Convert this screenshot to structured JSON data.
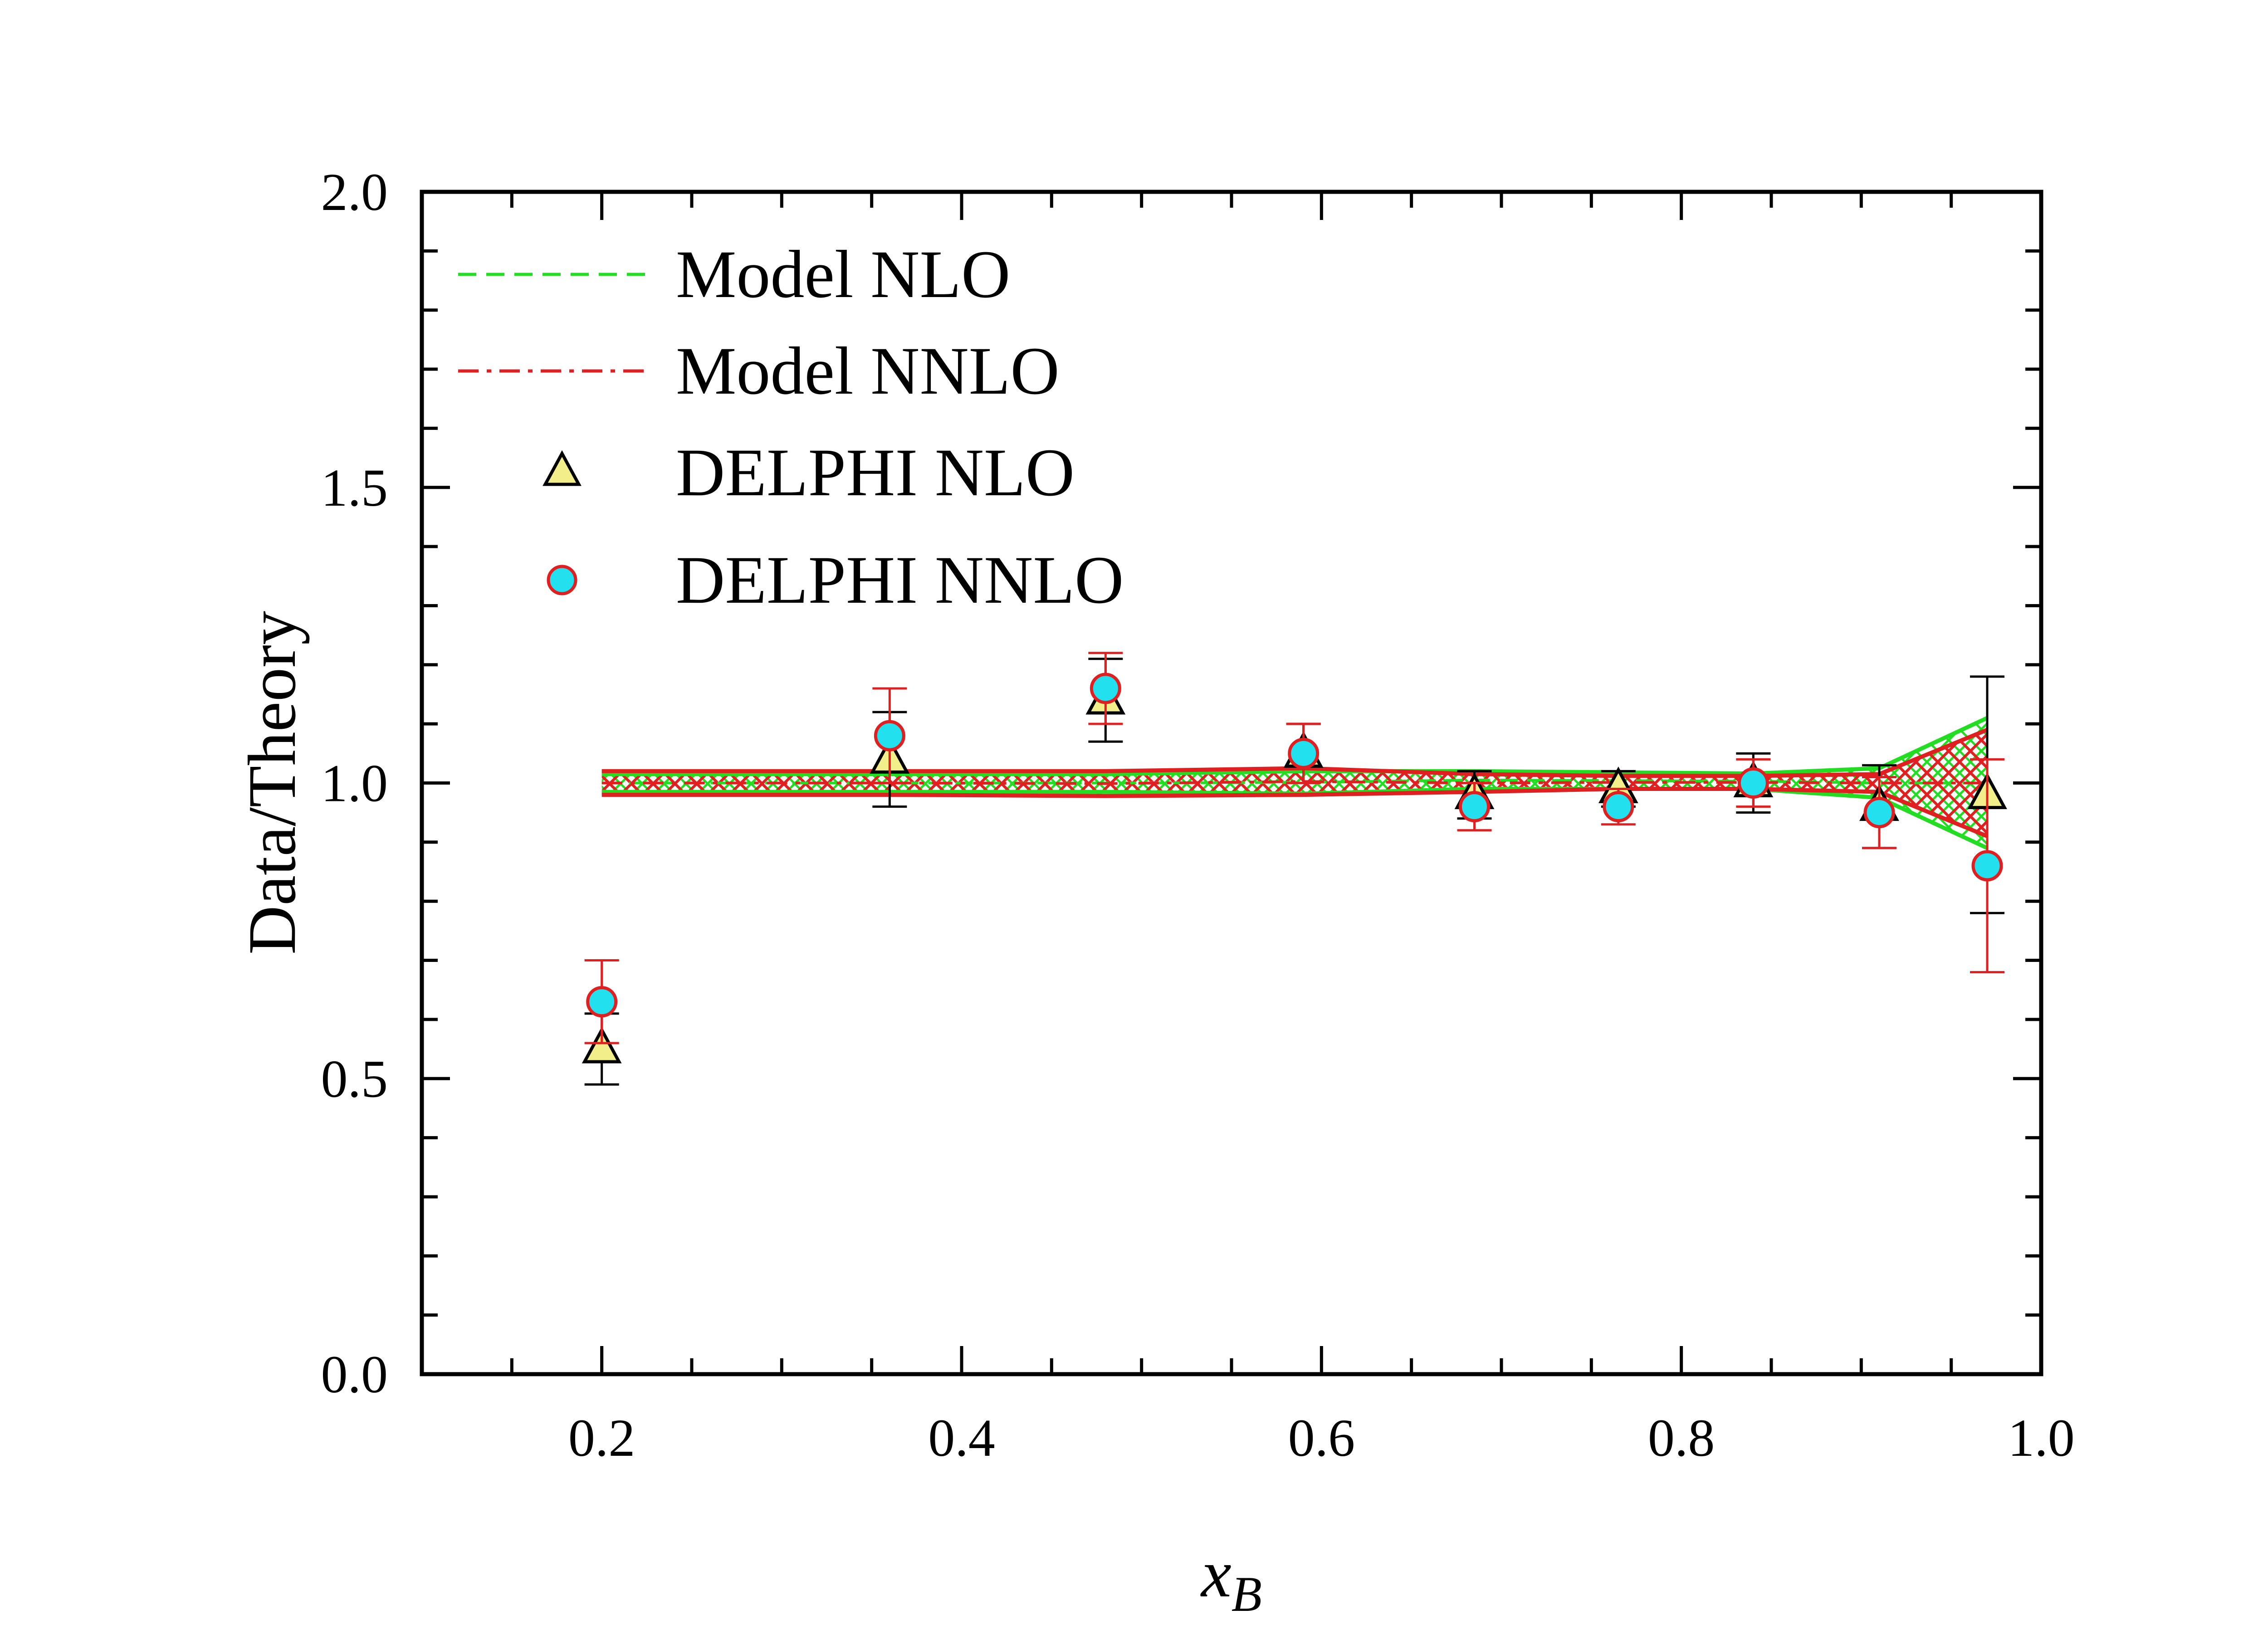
{
  "chart_data": {
    "type": "scatter",
    "xlabel": "x",
    "xlabel_subscript": "B",
    "ylabel": "Data/Theory",
    "xlim": [
      0.1,
      1.0
    ],
    "ylim": [
      0.0,
      2.0
    ],
    "x_ticks": [
      "0.2",
      "0.4",
      "0.6",
      "0.8",
      "1.0"
    ],
    "x_tick_values": [
      0.2,
      0.4,
      0.6,
      0.8,
      1.0
    ],
    "y_ticks": [
      "0.0",
      "0.5",
      "1.0",
      "1.5",
      "2.0"
    ],
    "y_tick_values": [
      0.0,
      0.5,
      1.0,
      1.5,
      2.0
    ],
    "legend_position": "top-left",
    "legend": [
      "Model NLO",
      "Model NNLO",
      "DELPHI NLO",
      "DELPHI NNLO"
    ],
    "bands": [
      {
        "name": "Model NLO",
        "style": "dashed",
        "color": "#22dd22",
        "x": [
          0.2,
          0.36,
          0.48,
          0.59,
          0.685,
          0.765,
          0.84,
          0.91,
          0.97
        ],
        "upper": [
          1.015,
          1.015,
          1.015,
          1.02,
          1.02,
          1.018,
          1.016,
          1.025,
          1.11
        ],
        "lower": [
          0.985,
          0.985,
          0.985,
          0.982,
          0.99,
          0.99,
          0.99,
          0.975,
          0.89
        ]
      },
      {
        "name": "Model NNLO",
        "style": "dashdot",
        "color": "#e02020",
        "x": [
          0.2,
          0.36,
          0.48,
          0.59,
          0.685,
          0.765,
          0.84,
          0.91,
          0.97
        ],
        "upper": [
          1.02,
          1.02,
          1.02,
          1.025,
          1.015,
          1.012,
          1.012,
          1.015,
          1.09
        ],
        "lower": [
          0.98,
          0.98,
          0.978,
          0.98,
          0.985,
          0.99,
          0.99,
          0.985,
          0.91
        ]
      }
    ],
    "series": [
      {
        "name": "DELPHI NLO",
        "marker": "triangle",
        "color": "#f2ee8a",
        "edge": "#000000",
        "x": [
          0.2,
          0.36,
          0.48,
          0.59,
          0.685,
          0.765,
          0.84,
          0.91,
          0.97
        ],
        "y": [
          0.55,
          1.04,
          1.14,
          1.05,
          0.98,
          0.99,
          1.0,
          0.96,
          0.98
        ],
        "err": [
          0.06,
          0.08,
          0.07,
          0.05,
          0.04,
          0.03,
          0.05,
          0.07,
          0.2
        ]
      },
      {
        "name": "DELPHI NNLO",
        "marker": "circle",
        "color": "#22e0ee",
        "edge": "#e02020",
        "x": [
          0.2,
          0.36,
          0.48,
          0.59,
          0.685,
          0.765,
          0.84,
          0.91,
          0.97
        ],
        "y": [
          0.63,
          1.08,
          1.16,
          1.05,
          0.96,
          0.96,
          1.0,
          0.95,
          0.86
        ],
        "err": [
          0.07,
          0.08,
          0.06,
          0.05,
          0.04,
          0.03,
          0.04,
          0.06,
          0.18
        ]
      }
    ]
  }
}
